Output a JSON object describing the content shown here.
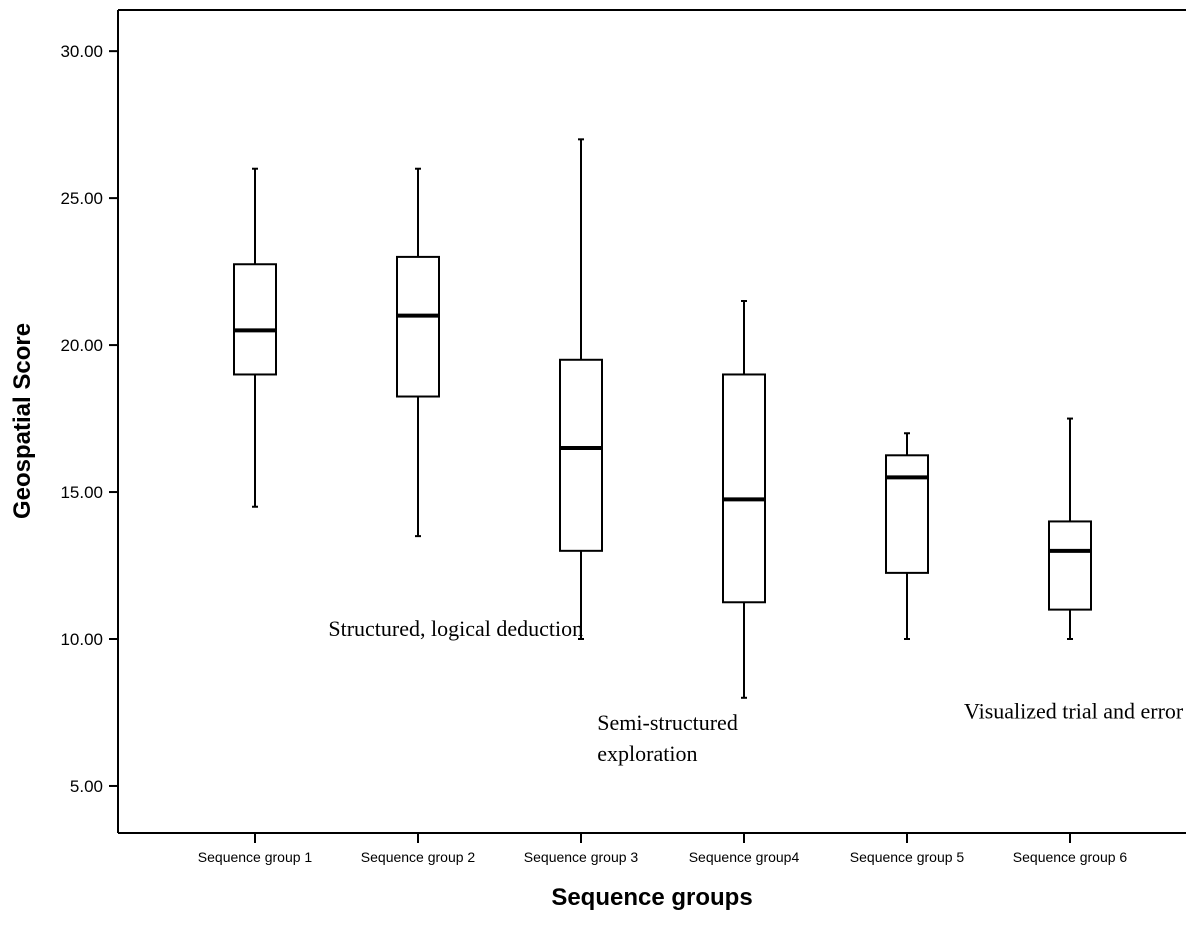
{
  "chart_data": {
    "type": "boxplot",
    "title": "",
    "xlabel": "Sequence groups",
    "ylabel": "Geospatial Score",
    "ylim": [
      3.4,
      31.4
    ],
    "yticks": [
      5,
      10,
      15,
      20,
      25,
      30
    ],
    "ytick_labels": [
      "5.00",
      "10.00",
      "15.00",
      "20.00",
      "25.00",
      "30.00"
    ],
    "grid": false,
    "categories": [
      "Sequence group 1",
      "Sequence group 2",
      "Sequence group 3",
      "Sequence group4",
      "Sequence group 5",
      "Sequence group 6"
    ],
    "boxes": [
      {
        "min": 14.5,
        "q1": 19.0,
        "median": 20.5,
        "q3": 22.75,
        "max": 26.0
      },
      {
        "min": 13.5,
        "q1": 18.25,
        "median": 21.0,
        "q3": 23.0,
        "max": 26.0
      },
      {
        "min": 10.0,
        "q1": 13.0,
        "median": 16.5,
        "q3": 19.5,
        "max": 27.0
      },
      {
        "min": 8.0,
        "q1": 11.25,
        "median": 14.75,
        "q3": 19.0,
        "max": 21.5
      },
      {
        "min": 10.0,
        "q1": 12.25,
        "median": 15.5,
        "q3": 16.25,
        "max": 17.0
      },
      {
        "min": 10.0,
        "q1": 11.0,
        "median": 13.0,
        "q3": 14.0,
        "max": 17.5
      }
    ],
    "annotations": [
      {
        "lines": [
          "Structured, logical deduction"
        ],
        "x": 1.45,
        "y": 10.1
      },
      {
        "lines": [
          "Semi-structured",
          "exploration"
        ],
        "x": 3.1,
        "y": 6.9
      },
      {
        "lines": [
          "Visualized trial and error"
        ],
        "x": 5.35,
        "y": 7.3
      }
    ]
  }
}
